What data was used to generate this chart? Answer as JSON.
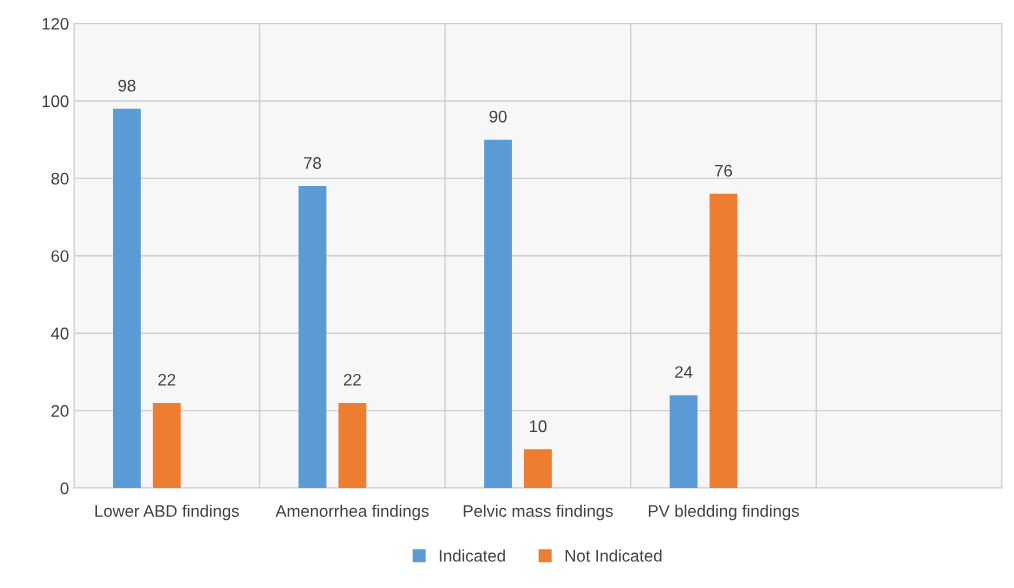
{
  "chart_data": {
    "type": "bar",
    "categories": [
      "Lower ABD findings",
      "Amenorrhea findings",
      "Pelvic mass findings",
      "PV bledding findings",
      null
    ],
    "series": [
      {
        "name": "Indicated",
        "color": "#5b9bd5",
        "values": [
          98,
          78,
          90,
          24,
          null
        ]
      },
      {
        "name": "Not Indicated",
        "color": "#ed7d31",
        "values": [
          22,
          22,
          10,
          76,
          null
        ]
      }
    ],
    "ylim": [
      0,
      120
    ],
    "yticks": [
      0,
      20,
      40,
      60,
      80,
      100,
      120
    ],
    "grid": true,
    "legend": "bottom",
    "data_labels": true
  }
}
